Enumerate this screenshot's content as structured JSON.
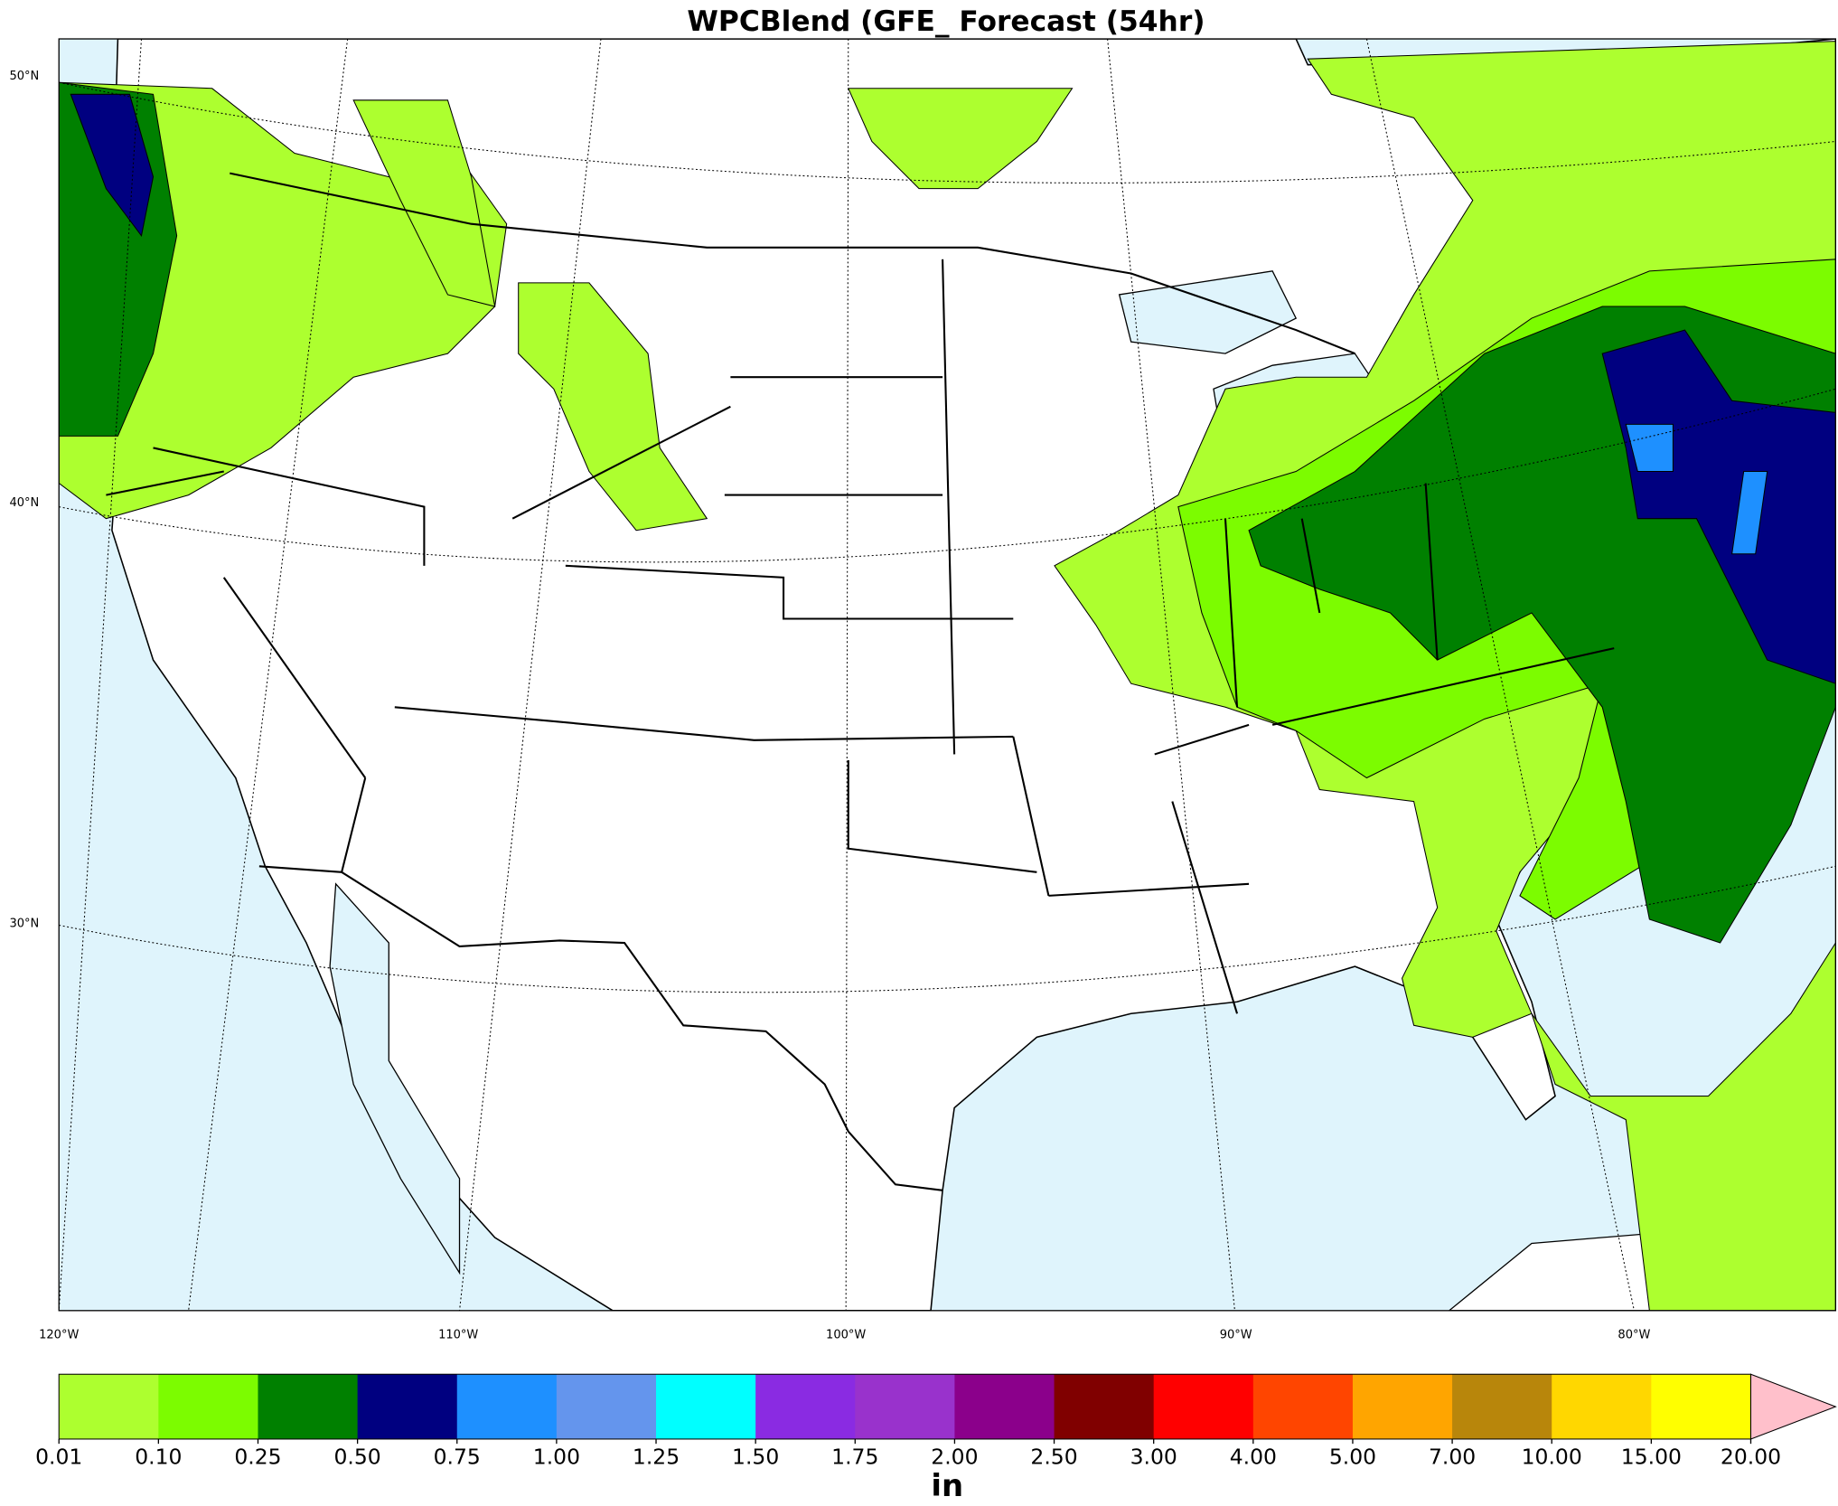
{
  "title": "WPCBlend (GFE_ Forecast (54hr)",
  "map": {
    "lat_labels": [
      "50°N",
      "40°N",
      "30°N"
    ],
    "lon_labels": [
      "120°W",
      "110°W",
      "100°W",
      "90°W",
      "80°W"
    ]
  },
  "colorbar": {
    "ticks": [
      {
        "value": 0.01,
        "label": "0.01"
      },
      {
        "value": 0.1,
        "label": "0.10"
      },
      {
        "value": 0.25,
        "label": "0.25"
      },
      {
        "value": 0.5,
        "label": "0.50"
      },
      {
        "value": 0.75,
        "label": "0.75"
      },
      {
        "value": 1,
        "label": "1.00"
      },
      {
        "value": 1.25,
        "label": "1.25"
      },
      {
        "value": 1.5,
        "label": "1.50"
      },
      {
        "value": 1.75,
        "label": "1.75"
      },
      {
        "value": 2,
        "label": "2.00"
      },
      {
        "value": 2.5,
        "label": "2.50"
      },
      {
        "value": 3,
        "label": "3.00"
      },
      {
        "value": 4,
        "label": "4.00"
      },
      {
        "value": 5,
        "label": "5.00"
      },
      {
        "value": 7,
        "label": "7.00"
      },
      {
        "value": 10,
        "label": "10.00"
      },
      {
        "value": 15,
        "label": "15.00"
      },
      {
        "value": 20,
        "label": "20.00"
      }
    ],
    "colors": [
      "#adff2f",
      "#7cfc00",
      "#008000",
      "#000080",
      "#1e90ff",
      "#6495ed",
      "#00ffff",
      "#8a2be2",
      "#9932cc",
      "#8b008b",
      "#800000",
      "#ff0000",
      "#ff4500",
      "#ffa500",
      "#b8860b",
      "#ffd700",
      "#ffff00"
    ],
    "extend_color": "#ffc0cb",
    "label": "in"
  }
}
